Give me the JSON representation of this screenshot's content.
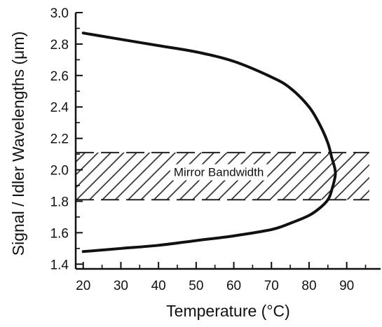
{
  "chart_data": {
    "type": "line",
    "xlabel": "Temperature (°C)",
    "ylabel": "Signal / Idler Wavelengths (μm)",
    "xlim": [
      18,
      99
    ],
    "ylim": [
      1.37,
      3.0
    ],
    "xticks": [
      20,
      30,
      40,
      50,
      60,
      70,
      80,
      90
    ],
    "yticks": [
      1.4,
      1.6,
      1.8,
      2.0,
      2.2,
      2.4,
      2.6,
      2.8,
      3.0
    ],
    "ytick_labels": [
      "1.4",
      "1.6",
      "1.8",
      "2.0",
      "2.2",
      "2.4",
      "2.6",
      "2.8",
      "3.0"
    ],
    "grid": false,
    "series": [
      {
        "x": [
          20,
          30,
          40,
          50,
          60,
          70,
          75,
          80,
          83,
          85,
          86,
          87,
          86,
          85,
          83,
          80,
          75,
          70,
          60,
          50,
          40,
          30,
          20
        ],
        "y": [
          2.87,
          2.83,
          2.79,
          2.75,
          2.69,
          2.59,
          2.52,
          2.4,
          2.28,
          2.17,
          2.08,
          1.98,
          1.87,
          1.81,
          1.76,
          1.71,
          1.66,
          1.62,
          1.58,
          1.55,
          1.52,
          1.5,
          1.48
        ]
      }
    ],
    "band": {
      "y_min": 1.81,
      "y_max": 2.11,
      "x_min": 18,
      "x_max": 96,
      "pattern": "diagonal-hatch"
    },
    "annotations": [
      {
        "text": "Mirror Bandwidth",
        "x": 56,
        "y": 1.96
      }
    ]
  }
}
